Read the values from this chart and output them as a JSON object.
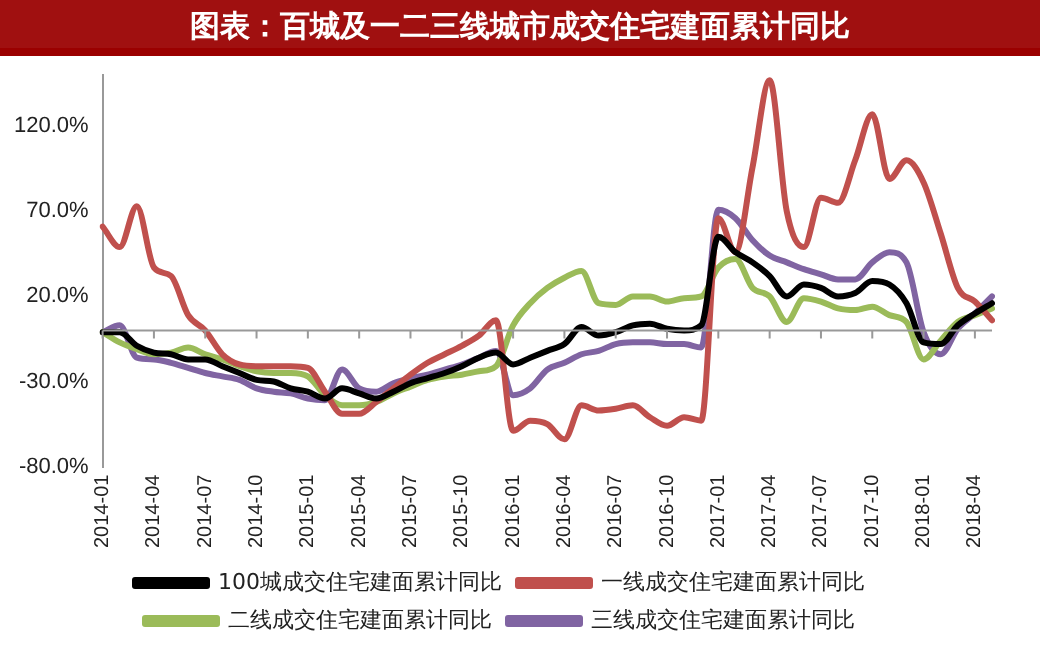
{
  "chart_data": {
    "type": "line",
    "title": "图表：百城及一二三线城市成交住宅建面累计同比",
    "categories": [
      "2014-01",
      null,
      null,
      "2014-04",
      null,
      null,
      "2014-07",
      null,
      null,
      "2014-10",
      null,
      null,
      "2015-01",
      null,
      null,
      "2015-04",
      null,
      null,
      "2015-07",
      null,
      null,
      "2015-10",
      null,
      null,
      "2016-01",
      null,
      null,
      "2016-04",
      null,
      null,
      "2016-07",
      null,
      null,
      "2016-10",
      null,
      null,
      "2017-01",
      null,
      null,
      "2017-04",
      null,
      null,
      "2017-07",
      null,
      null,
      "2017-10",
      null,
      null,
      "2018-01",
      null,
      null,
      "2018-04",
      null
    ],
    "series": [
      {
        "name": "100城成交住宅建面累计同比",
        "color": "#000000",
        "values": [
          -1,
          -1,
          -9,
          -13,
          -14,
          -17,
          -17,
          -21,
          -25,
          -29,
          -30,
          -34,
          -36,
          -40,
          -34,
          -37,
          -40,
          -36,
          -31,
          -28,
          -25,
          -21,
          -16,
          -13,
          -20,
          -16,
          -12,
          -8,
          2,
          -3,
          -1,
          3,
          4,
          1,
          0,
          3,
          55,
          46,
          40,
          32,
          20,
          27,
          25,
          20,
          22,
          29,
          27,
          16,
          -7,
          -8,
          3,
          10,
          16
        ]
      },
      {
        "name": "一线成交住宅建面累计同比",
        "color": "#c0504d",
        "values": [
          61,
          49,
          73,
          37,
          32,
          9,
          0,
          -14,
          -20,
          -21,
          -21,
          -21,
          -22,
          -36,
          -49,
          -49,
          -42,
          -34,
          -26,
          -19,
          -14,
          -9,
          -3,
          6,
          -59,
          -53,
          -55,
          -64,
          -44,
          -47,
          -46,
          -44,
          -51,
          -56,
          -51,
          -53,
          66,
          46,
          96,
          147,
          70,
          49,
          78,
          75,
          100,
          127,
          89,
          100,
          87,
          57,
          25,
          17,
          6
        ]
      },
      {
        "name": "二线成交住宅建面累计同比",
        "color": "#9bbb59",
        "values": [
          -1,
          -7,
          -11,
          -14,
          -13,
          -10,
          -14,
          -17,
          -21,
          -24,
          -25,
          -25,
          -27,
          -38,
          -44,
          -44,
          -42,
          -37,
          -33,
          -29,
          -27,
          -26,
          -24,
          -21,
          3,
          16,
          25,
          31,
          35,
          16,
          15,
          20,
          20,
          17,
          19,
          20,
          37,
          42,
          25,
          20,
          5,
          19,
          17,
          13,
          12,
          14,
          9,
          5,
          -17,
          -6,
          5,
          9,
          13
        ]
      },
      {
        "name": "三线成交住宅建面累计同比",
        "color": "#8064a2",
        "values": [
          -1,
          3,
          -16,
          -17,
          -19,
          -22,
          -25,
          -27,
          -29,
          -34,
          -36,
          -37,
          -40,
          -41,
          -23,
          -34,
          -36,
          -31,
          -28,
          -26,
          -23,
          -20,
          -16,
          -12,
          -38,
          -34,
          -23,
          -19,
          -14,
          -12,
          -8,
          -7,
          -7,
          -8,
          -8,
          -10,
          71,
          66,
          53,
          44,
          40,
          36,
          33,
          30,
          30,
          40,
          46,
          40,
          -1,
          -14,
          1,
          10,
          20
        ]
      }
    ],
    "ylim": [
      -80,
      150
    ],
    "yticks": [
      {
        "value": -80,
        "label": "-80.0%"
      },
      {
        "value": -30,
        "label": "-30.0%"
      },
      {
        "value": 20,
        "label": "20.0%"
      },
      {
        "value": 70,
        "label": "70.0%"
      },
      {
        "value": 120,
        "label": "120.0%"
      }
    ],
    "grid": false,
    "legend": "bottom",
    "marker": "none",
    "line_style": "solid"
  }
}
